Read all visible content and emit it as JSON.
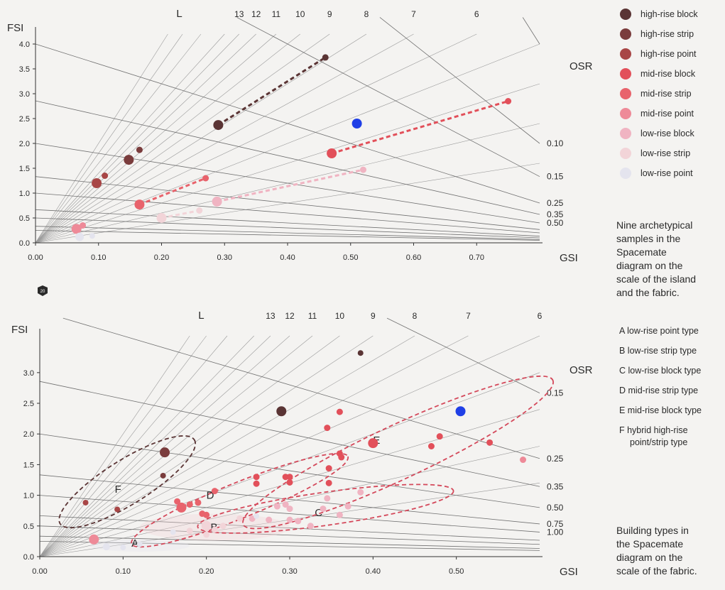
{
  "colors": {
    "high_block": "#5a3434",
    "high_strip": "#7a3c3c",
    "high_point": "#a84646",
    "mid_block": "#e2505a",
    "mid_strip": "#e8636c",
    "mid_point": "#ee8a98",
    "low_block": "#f0b4c2",
    "low_strip": "#f2d4d8",
    "low_point": "#e4e4ee",
    "highlight": "#1f3fe6",
    "hybrid_ellipse": "#5a3434",
    "group_ellipse": "#d4485a"
  },
  "legend": {
    "items": [
      {
        "label": "high-rise block",
        "color_key": "high_block"
      },
      {
        "label": "high-rise strip",
        "color_key": "high_strip"
      },
      {
        "label": "high-rise point",
        "color_key": "high_point"
      },
      {
        "label": "mid-rise block",
        "color_key": "mid_block"
      },
      {
        "label": "mid-rise strip",
        "color_key": "mid_strip"
      },
      {
        "label": "mid-rise point",
        "color_key": "mid_point"
      },
      {
        "label": "low-rise block",
        "color_key": "low_block"
      },
      {
        "label": "low-rise strip",
        "color_key": "low_strip"
      },
      {
        "label": "low-rise point",
        "color_key": "low_point"
      }
    ]
  },
  "caption_top": [
    "Nine archetypical",
    "samples in the",
    "Spacemate",
    "diagram on the",
    "scale of the island",
    "and the fabric."
  ],
  "caption_bottom": [
    "Building types in",
    "the Spacemate",
    "diagram on the",
    "scale of the fabric."
  ],
  "type_legend": [
    [
      "A  low-rise point type"
    ],
    [
      "B  low-rise strip type"
    ],
    [
      "C  low-rise block type"
    ],
    [
      "D  mid-rise strip type"
    ],
    [
      "E  mid-rise block type"
    ],
    [
      "F  hybrid high-rise",
      "point/strip type"
    ]
  ],
  "page_badge": "20",
  "chart_data": [
    {
      "type": "scatter",
      "xlabel": "GSI",
      "ylabel": "FSI",
      "layers_label": "L",
      "osr_label": "OSR",
      "xlim": [
        0,
        0.8
      ],
      "ylim": [
        0,
        4.2
      ],
      "x_ticks": [
        0.0,
        0.1,
        0.2,
        0.3,
        0.4,
        0.5,
        0.6,
        0.7
      ],
      "x_tick_labels": [
        "0.00",
        "0.10",
        "0.20",
        "0.30",
        "0.40",
        "0.50",
        "0.60",
        "0.70"
      ],
      "y_ticks": [
        0,
        0.5,
        1.0,
        1.5,
        2.0,
        2.5,
        3.0,
        3.5,
        4.0
      ],
      "y_tick_labels": [
        "0.0",
        "0.5",
        "1.0",
        "1.5",
        "2.0",
        "2.5",
        "3.0",
        "3.5",
        "4.0"
      ],
      "layer_lines": [
        2,
        3,
        4,
        5,
        6,
        7,
        8,
        9,
        10,
        11,
        12,
        13,
        14,
        16,
        18,
        20
      ],
      "layer_labels": [
        {
          "L": 13,
          "text": "13"
        },
        {
          "L": 12,
          "text": "12"
        },
        {
          "L": 11,
          "text": "11"
        },
        {
          "L": 10,
          "text": "10"
        },
        {
          "L": 9,
          "text": "9"
        },
        {
          "L": 8,
          "text": "8"
        },
        {
          "L": 7,
          "text": "7"
        },
        {
          "L": 6,
          "text": "6"
        }
      ],
      "osr_lines": [
        0.03,
        0.05,
        0.1,
        0.15,
        0.25,
        0.35,
        0.5,
        0.75,
        1.0,
        1.5,
        2.0,
        3.0,
        4.0
      ],
      "osr_labels": [
        {
          "osr": 0.1,
          "text": "0.10"
        },
        {
          "osr": 0.15,
          "text": "0.15"
        },
        {
          "osr": 0.25,
          "text": "0.25"
        },
        {
          "osr": 0.35,
          "text": "0.35"
        },
        {
          "osr": 0.5,
          "text": "0.50"
        }
      ],
      "series": [
        {
          "name": "high-rise block",
          "color_key": "high_block",
          "points": [
            {
              "x": 0.29,
              "y": 2.37,
              "size": 7
            },
            {
              "x": 0.46,
              "y": 3.73,
              "size": 4.5
            }
          ]
        },
        {
          "name": "high-rise strip",
          "color_key": "high_strip",
          "points": [
            {
              "x": 0.148,
              "y": 1.67,
              "size": 7
            },
            {
              "x": 0.165,
              "y": 1.87,
              "size": 4.5
            }
          ]
        },
        {
          "name": "high-rise point",
          "color_key": "high_point",
          "points": [
            {
              "x": 0.097,
              "y": 1.2,
              "size": 7
            },
            {
              "x": 0.11,
              "y": 1.35,
              "size": 4.5
            }
          ]
        },
        {
          "name": "mid-rise block",
          "color_key": "mid_block",
          "points": [
            {
              "x": 0.47,
              "y": 1.8,
              "size": 7
            },
            {
              "x": 0.75,
              "y": 2.85,
              "size": 4.5
            }
          ]
        },
        {
          "name": "mid-rise strip",
          "color_key": "mid_strip",
          "points": [
            {
              "x": 0.165,
              "y": 0.77,
              "size": 7
            },
            {
              "x": 0.27,
              "y": 1.3,
              "size": 4.5
            }
          ]
        },
        {
          "name": "mid-rise point",
          "color_key": "mid_point",
          "points": [
            {
              "x": 0.065,
              "y": 0.28,
              "size": 7
            },
            {
              "x": 0.075,
              "y": 0.35,
              "size": 4.5
            }
          ]
        },
        {
          "name": "low-rise block",
          "color_key": "low_block",
          "points": [
            {
              "x": 0.288,
              "y": 0.83,
              "size": 7
            },
            {
              "x": 0.52,
              "y": 1.47,
              "size": 4.5
            }
          ]
        },
        {
          "name": "low-rise strip",
          "color_key": "low_strip",
          "points": [
            {
              "x": 0.2,
              "y": 0.5,
              "size": 7
            },
            {
              "x": 0.26,
              "y": 0.65,
              "size": 4.5
            }
          ]
        },
        {
          "name": "low-rise point",
          "color_key": "low_point",
          "points": [
            {
              "x": 0.07,
              "y": 0.12,
              "size": 6
            },
            {
              "x": 0.09,
              "y": 0.14,
              "size": 4
            }
          ]
        },
        {
          "name": "",
          "color_key": "highlight",
          "points": [
            {
              "x": 0.51,
              "y": 2.4,
              "size": 7
            }
          ]
        }
      ],
      "dashed_links": [
        {
          "from": [
            0.29,
            2.37
          ],
          "to": [
            0.46,
            3.73
          ],
          "color_key": "high_block"
        },
        {
          "from": [
            0.47,
            1.8
          ],
          "to": [
            0.75,
            2.85
          ],
          "color_key": "mid_block"
        },
        {
          "from": [
            0.165,
            0.77
          ],
          "to": [
            0.27,
            1.3
          ],
          "color_key": "mid_strip"
        },
        {
          "from": [
            0.288,
            0.83
          ],
          "to": [
            0.52,
            1.47
          ],
          "color_key": "low_block"
        },
        {
          "from": [
            0.2,
            0.5
          ],
          "to": [
            0.26,
            0.65
          ],
          "color_key": "low_strip"
        }
      ]
    },
    {
      "type": "scatter",
      "xlabel": "GSI",
      "ylabel": "FSI",
      "layers_label": "L",
      "osr_label": "OSR",
      "xlim": [
        0,
        0.6
      ],
      "ylim": [
        0,
        3.6
      ],
      "x_ticks": [
        0.0,
        0.1,
        0.2,
        0.3,
        0.4,
        0.5
      ],
      "x_tick_labels": [
        "0.00",
        "0.10",
        "0.20",
        "0.30",
        "0.40",
        "0.50"
      ],
      "y_ticks": [
        0,
        0.5,
        1.0,
        1.5,
        2.0,
        2.5,
        3.0
      ],
      "y_tick_labels": [
        "0.0",
        "0.5",
        "1.0",
        "1.5",
        "2.0",
        "2.5",
        "3.0"
      ],
      "layer_lines": [
        2,
        3,
        4,
        5,
        6,
        7,
        8,
        9,
        10,
        11,
        12,
        13,
        14,
        16,
        18,
        20
      ],
      "layer_labels": [
        {
          "L": 13,
          "text": "13"
        },
        {
          "L": 12,
          "text": "12"
        },
        {
          "L": 11,
          "text": "11"
        },
        {
          "L": 10,
          "text": "10"
        },
        {
          "L": 9,
          "text": "9"
        },
        {
          "L": 8,
          "text": "8"
        },
        {
          "L": 7,
          "text": "7"
        },
        {
          "L": 6,
          "text": "6"
        }
      ],
      "osr_lines": [
        0.05,
        0.1,
        0.15,
        0.25,
        0.35,
        0.5,
        0.75,
        1.0,
        1.5,
        2.0,
        3.0,
        4.0
      ],
      "osr_labels": [
        {
          "osr": 0.15,
          "text": "0.15"
        },
        {
          "osr": 0.25,
          "text": "0.25"
        },
        {
          "osr": 0.35,
          "text": "0.35"
        },
        {
          "osr": 0.5,
          "text": "0.50"
        },
        {
          "osr": 0.75,
          "text": "0.75"
        },
        {
          "osr": 1.0,
          "text": "1.00"
        }
      ],
      "series": [
        {
          "name": "high-rise block",
          "color_key": "high_block",
          "points": [
            {
              "x": 0.29,
              "y": 2.37,
              "size": 7
            },
            {
              "x": 0.385,
              "y": 3.32,
              "size": 4
            }
          ]
        },
        {
          "name": "high-rise strip",
          "color_key": "high_strip",
          "points": [
            {
              "x": 0.15,
              "y": 1.7,
              "size": 7
            },
            {
              "x": 0.148,
              "y": 1.32,
              "size": 4
            }
          ]
        },
        {
          "name": "high-rise point",
          "color_key": "high_point",
          "points": [
            {
              "x": 0.055,
              "y": 0.88,
              "size": 4
            },
            {
              "x": 0.093,
              "y": 0.77,
              "size": 4
            }
          ]
        },
        {
          "name": "mid-rise block",
          "color_key": "mid_block",
          "points": [
            {
              "x": 0.4,
              "y": 1.85,
              "size": 7
            },
            {
              "x": 0.36,
              "y": 2.36,
              "size": 4.5
            },
            {
              "x": 0.345,
              "y": 2.1,
              "size": 4.5
            },
            {
              "x": 0.36,
              "y": 1.68,
              "size": 4.5
            },
            {
              "x": 0.362,
              "y": 1.62,
              "size": 4.5
            },
            {
              "x": 0.347,
              "y": 1.44,
              "size": 4.5
            },
            {
              "x": 0.347,
              "y": 1.2,
              "size": 4.5
            },
            {
              "x": 0.26,
              "y": 1.3,
              "size": 4.5
            },
            {
              "x": 0.26,
              "y": 1.19,
              "size": 4.5
            },
            {
              "x": 0.295,
              "y": 1.3,
              "size": 4.5
            },
            {
              "x": 0.3,
              "y": 1.3,
              "size": 4.5
            },
            {
              "x": 0.3,
              "y": 1.21,
              "size": 4.5
            },
            {
              "x": 0.48,
              "y": 1.96,
              "size": 4.5
            },
            {
              "x": 0.47,
              "y": 1.8,
              "size": 4.5
            },
            {
              "x": 0.54,
              "y": 1.86,
              "size": 4.5
            }
          ]
        },
        {
          "name": "mid-rise strip",
          "color_key": "mid_strip",
          "points": [
            {
              "x": 0.17,
              "y": 0.8,
              "size": 7
            },
            {
              "x": 0.21,
              "y": 1.07,
              "size": 4.5
            },
            {
              "x": 0.165,
              "y": 0.9,
              "size": 4.5
            },
            {
              "x": 0.19,
              "y": 0.88,
              "size": 4.5
            },
            {
              "x": 0.18,
              "y": 0.85,
              "size": 4.5
            },
            {
              "x": 0.2,
              "y": 0.68,
              "size": 4.5
            },
            {
              "x": 0.195,
              "y": 0.7,
              "size": 4.5
            }
          ]
        },
        {
          "name": "mid-rise point",
          "color_key": "mid_point",
          "points": [
            {
              "x": 0.065,
              "y": 0.28,
              "size": 7
            },
            {
              "x": 0.58,
              "y": 1.58,
              "size": 4.5
            }
          ]
        },
        {
          "name": "low-rise block",
          "color_key": "low_block",
          "points": [
            {
              "x": 0.385,
              "y": 1.05,
              "size": 4.5
            },
            {
              "x": 0.345,
              "y": 0.95,
              "size": 4.5
            },
            {
              "x": 0.37,
              "y": 0.82,
              "size": 4.5
            },
            {
              "x": 0.3,
              "y": 0.78,
              "size": 4.5
            },
            {
              "x": 0.285,
              "y": 0.82,
              "size": 4.5
            },
            {
              "x": 0.295,
              "y": 0.85,
              "size": 4.5
            },
            {
              "x": 0.34,
              "y": 0.78,
              "size": 4.5
            },
            {
              "x": 0.36,
              "y": 0.68,
              "size": 4.5
            },
            {
              "x": 0.275,
              "y": 0.6,
              "size": 4.5
            },
            {
              "x": 0.3,
              "y": 0.6,
              "size": 4.5
            },
            {
              "x": 0.31,
              "y": 0.58,
              "size": 4.5
            },
            {
              "x": 0.325,
              "y": 0.5,
              "size": 4.5
            },
            {
              "x": 0.255,
              "y": 0.62,
              "size": 4.5
            }
          ]
        },
        {
          "name": "low-rise strip",
          "color_key": "low_strip",
          "points": [
            {
              "x": 0.2,
              "y": 0.5,
              "size": 7
            },
            {
              "x": 0.24,
              "y": 0.62,
              "size": 4.5
            },
            {
              "x": 0.22,
              "y": 0.5,
              "size": 4.5
            },
            {
              "x": 0.18,
              "y": 0.42,
              "size": 4.5
            },
            {
              "x": 0.2,
              "y": 0.36,
              "size": 4.5
            },
            {
              "x": 0.21,
              "y": 0.44,
              "size": 4.5
            }
          ]
        },
        {
          "name": "low-rise point",
          "color_key": "low_point",
          "points": [
            {
              "x": 0.08,
              "y": 0.16,
              "size": 5
            },
            {
              "x": 0.1,
              "y": 0.15,
              "size": 4
            },
            {
              "x": 0.16,
              "y": 0.4,
              "size": 4
            },
            {
              "x": 0.26,
              "y": 0.66,
              "size": 4
            },
            {
              "x": 0.12,
              "y": 0.2,
              "size": 4
            }
          ]
        },
        {
          "name": "",
          "color_key": "highlight",
          "points": [
            {
              "x": 0.505,
              "y": 2.37,
              "size": 7
            }
          ]
        }
      ],
      "groups": [
        {
          "label": "A",
          "label_at": [
            0.11,
            0.22
          ],
          "cx": 0.12,
          "cy": 0.18,
          "rx": 0.06,
          "ry": 0.1,
          "rot": 0,
          "color_key": "low_point",
          "outline": false
        },
        {
          "label": "B",
          "label_at": [
            0.205,
            0.48
          ],
          "cx": 0.21,
          "cy": 0.48,
          "rx": 0.09,
          "ry": 0.22,
          "rot": 0,
          "color_key": "low_strip",
          "outline": false
        },
        {
          "label": "C",
          "label_at": [
            0.33,
            0.72
          ],
          "cx": 0.343,
          "cy": 0.78,
          "rx": 0.155,
          "ry": 0.27,
          "rot": -8,
          "color_key": "group_ellipse",
          "outline": true
        },
        {
          "label": "D",
          "label_at": [
            0.2,
            1.0
          ],
          "cx": 0.24,
          "cy": 0.92,
          "rx": 0.14,
          "ry": 0.29,
          "rot": -22,
          "color_key": "group_ellipse",
          "outline": true
        },
        {
          "label": "E",
          "label_at": [
            0.4,
            1.9
          ],
          "cx": 0.43,
          "cy": 1.7,
          "rx": 0.205,
          "ry": 0.44,
          "rot": -25,
          "color_key": "group_ellipse",
          "outline": true
        },
        {
          "label": "F",
          "label_at": [
            0.09,
            1.1
          ],
          "cx": 0.105,
          "cy": 1.22,
          "rx": 0.095,
          "ry": 0.36,
          "rot": -32,
          "color_key": "hybrid_ellipse",
          "outline": true
        }
      ]
    }
  ]
}
